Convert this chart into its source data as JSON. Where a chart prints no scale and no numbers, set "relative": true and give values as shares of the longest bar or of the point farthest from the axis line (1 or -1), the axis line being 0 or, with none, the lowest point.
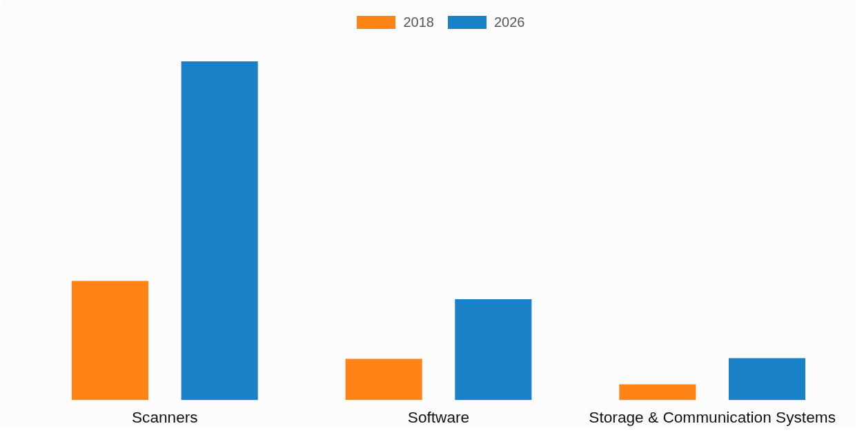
{
  "chart_data": {
    "type": "bar",
    "relative": true,
    "categories": [
      "Scanners",
      "Software",
      "Storage & Communication Systems"
    ],
    "series": [
      {
        "name": "2018",
        "color": "#ff8418",
        "values": [
          0.352,
          0.122,
          0.047
        ]
      },
      {
        "name": "2026",
        "color": "#1a80c8",
        "values": [
          1,
          0.298,
          0.124
        ]
      }
    ],
    "legend": "top",
    "grid": false
  }
}
